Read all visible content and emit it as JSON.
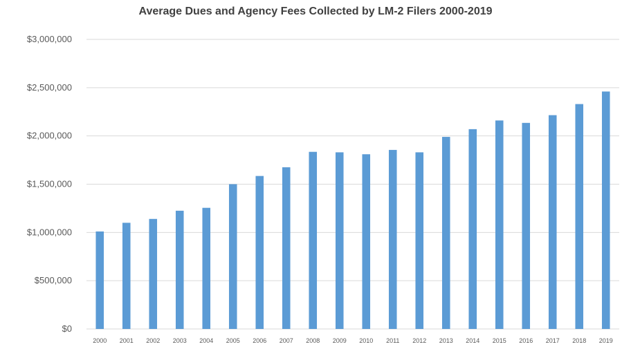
{
  "chart_data": {
    "type": "bar",
    "title": "Average Dues and Agency Fees Collected by LM-2 Filers 2000-2019",
    "xlabel": "",
    "ylabel": "",
    "categories": [
      "2000",
      "2001",
      "2002",
      "2003",
      "2004",
      "2005",
      "2006",
      "2007",
      "2008",
      "2009",
      "2010",
      "2011",
      "2012",
      "2013",
      "2014",
      "2015",
      "2016",
      "2017",
      "2018",
      "2019"
    ],
    "values": [
      1010000,
      1100000,
      1140000,
      1225000,
      1255000,
      1500000,
      1585000,
      1675000,
      1835000,
      1830000,
      1810000,
      1855000,
      1830000,
      1990000,
      2070000,
      2160000,
      2135000,
      2215000,
      2330000,
      2460000
    ],
    "ylim": [
      0,
      3000000
    ],
    "yticks": [
      0,
      500000,
      1000000,
      1500000,
      2000000,
      2500000,
      3000000
    ],
    "ytick_labels": [
      "$0",
      "$500,000",
      "$1,000,000",
      "$1,500,000",
      "$2,000,000",
      "$2,500,000",
      "$3,000,000"
    ],
    "grid": true,
    "legend": "none",
    "bar_color": "#5b9bd5",
    "grid_color": "#d9d9d9"
  }
}
